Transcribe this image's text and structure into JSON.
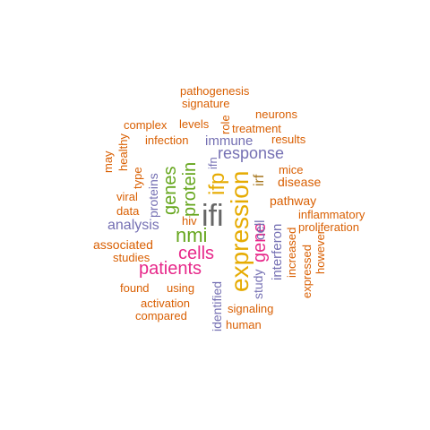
{
  "colors": {
    "orange": "#d95f02",
    "purple": "#7570b3",
    "green": "#66a61e",
    "pink": "#e7298a",
    "gold": "#e6ab02",
    "gray": "#666666",
    "brown": "#a6761d"
  },
  "words": {
    "ifi": "ifi",
    "expression": "expression",
    "ifp": "ifp",
    "nmi": "nmi",
    "cells": "cells",
    "patients": "patients",
    "gene": "gene",
    "protein": "protein",
    "genes": "genes",
    "response": "response",
    "analysis": "analysis",
    "immune": "immune",
    "irf": "irf",
    "interferon": "interferon",
    "cell": "cell",
    "study": "study",
    "identified": "identified",
    "proteins": "proteins",
    "pathogenesis": "pathogenesis",
    "signature": "signature",
    "neurons": "neurons",
    "levels": "levels",
    "role": "role",
    "complex": "complex",
    "treatment": "treatment",
    "results": "results",
    "infection": "infection",
    "healthy": "healthy",
    "may": "may",
    "type": "type",
    "ifn": "ifn",
    "mice": "mice",
    "disease": "disease",
    "viral": "viral",
    "data": "data",
    "pathway": "pathway",
    "inflammatory": "inflammatory",
    "proliferation": "proliferation",
    "hiv": "hiv",
    "associated": "associated",
    "studies": "studies",
    "increased": "increased",
    "expressed": "expressed",
    "however": "however",
    "found": "found",
    "using": "using",
    "activation": "activation",
    "compared": "compared",
    "signaling": "signaling",
    "human": "human"
  }
}
